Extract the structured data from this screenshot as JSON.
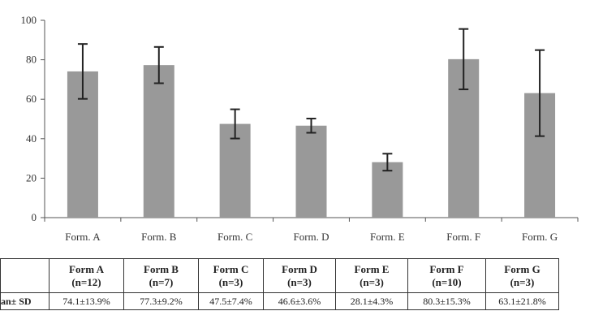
{
  "chart_data": {
    "type": "bar",
    "categories": [
      "Form. A",
      "Form. B",
      "Form. C",
      "Form. D",
      "Form. E",
      "Form. F",
      "Form. G"
    ],
    "values": [
      74.1,
      77.3,
      47.5,
      46.6,
      28.1,
      80.3,
      63.1
    ],
    "error": [
      13.9,
      9.2,
      7.4,
      3.6,
      4.3,
      15.3,
      21.8
    ],
    "ylim": [
      0,
      100
    ],
    "yticks": [
      0,
      20,
      40,
      60,
      80,
      100
    ],
    "bar_color": "#999999",
    "grid": false,
    "title": "",
    "xlabel": "",
    "ylabel": ""
  },
  "table": {
    "row_label": "an± SD",
    "columns": [
      {
        "name": "Form A",
        "n": "(n=12)",
        "value": "74.1±13.9%"
      },
      {
        "name": "Form B",
        "n": "(n=7)",
        "value": "77.3±9.2%"
      },
      {
        "name": "Form C",
        "n": "(n=3)",
        "value": "47.5±7.4%"
      },
      {
        "name": "Form D",
        "n": "(n=3)",
        "value": "46.6±3.6%"
      },
      {
        "name": "Form E",
        "n": "(n=3)",
        "value": "28.1±4.3%"
      },
      {
        "name": "Form F",
        "n": "(n=10)",
        "value": "80.3±15.3%"
      },
      {
        "name": "Form G",
        "n": "(n=3)",
        "value": "63.1±21.8%"
      }
    ]
  }
}
